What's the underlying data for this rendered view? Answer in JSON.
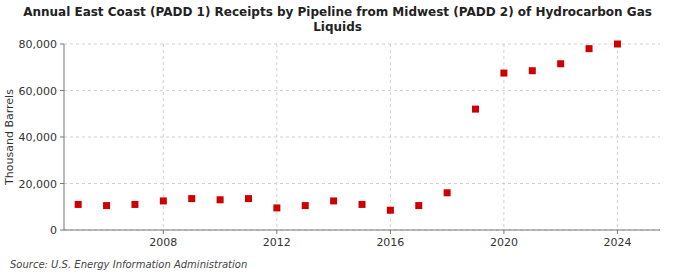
{
  "chart_data": {
    "type": "scatter",
    "title": "Annual East Coast (PADD 1) Receipts by Pipeline from Midwest (PADD 2) of Hydrocarbon Gas\nLiquids",
    "ylabel": "Thousand Barrels",
    "source": "Source: U.S. Energy Information Administration",
    "x": [
      2005,
      2006,
      2007,
      2008,
      2009,
      2010,
      2011,
      2012,
      2013,
      2014,
      2015,
      2016,
      2017,
      2018,
      2019,
      2020,
      2021,
      2022,
      2023,
      2024
    ],
    "values": [
      11000,
      10500,
      11000,
      12500,
      13500,
      13000,
      13500,
      9500,
      10500,
      12500,
      11000,
      8500,
      10500,
      16000,
      52000,
      67500,
      68500,
      71500,
      78000,
      80000
    ],
    "color": "#cc0000",
    "marker": "square",
    "xlim": [
      2004.5,
      2025.5
    ],
    "xticks": [
      2008,
      2012,
      2016,
      2020,
      2024
    ],
    "ylim": [
      0,
      80000
    ],
    "yticks": [
      0,
      {
        "value": 20000,
        "label": "20,000"
      },
      {
        "value": 40000,
        "label": "40,000"
      },
      {
        "value": 60000,
        "label": "60,000"
      },
      {
        "value": 80000,
        "label": "80,000"
      }
    ],
    "grid": true
  }
}
